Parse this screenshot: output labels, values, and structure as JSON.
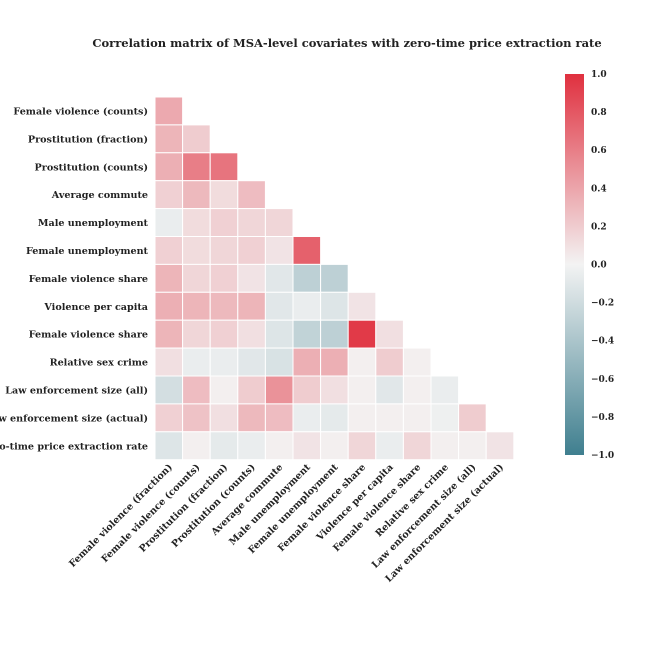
{
  "chart_data": {
    "type": "heatmap",
    "title": "Correlation matrix of MSA-level covariates with zero-time price extraction rate",
    "row_labels": [
      "Female violence (counts)",
      "Prostitution (fraction)",
      "Prostitution (counts)",
      "Average commute",
      "Male unemployment",
      "Female unemployment",
      "Female violence share",
      "Violence per capita",
      "Female violence share",
      "Relative sex crime",
      "Law enforcement size (all)",
      "Law enforcement size (actual)",
      "Zero-time price extraction rate"
    ],
    "column_labels": [
      "Female violence (fraction)",
      "Female violence (counts)",
      "Prostitution (fraction)",
      "Prostitution (counts)",
      "Average commute",
      "Male unemployment",
      "Female unemployment",
      "Female violence share",
      "Violence per capita",
      "Female violence share",
      "Relative sex crime",
      "Law enforcement size (all)",
      "Law enforcement size (actual)"
    ],
    "values": [
      [
        0.38
      ],
      [
        0.32,
        0.2
      ],
      [
        0.35,
        0.6,
        0.65
      ],
      [
        0.18,
        0.3,
        0.12,
        0.28
      ],
      [
        -0.05,
        0.12,
        0.18,
        0.15,
        0.15
      ],
      [
        0.18,
        0.12,
        0.15,
        0.18,
        0.08,
        0.75
      ],
      [
        0.32,
        0.15,
        0.18,
        0.08,
        -0.1,
        -0.3,
        -0.3
      ],
      [
        0.35,
        0.32,
        0.3,
        0.32,
        -0.1,
        -0.05,
        -0.12,
        0.08
      ],
      [
        0.32,
        0.15,
        0.18,
        0.1,
        -0.12,
        -0.28,
        -0.3,
        0.95,
        0.1
      ],
      [
        0.1,
        -0.05,
        -0.05,
        -0.1,
        -0.15,
        0.35,
        0.35,
        0.02,
        0.2,
        0.02
      ],
      [
        -0.18,
        0.28,
        0.02,
        0.2,
        0.5,
        0.2,
        0.1,
        0.02,
        -0.1,
        0.02,
        -0.05
      ],
      [
        0.18,
        0.25,
        0.1,
        0.3,
        0.28,
        -0.05,
        -0.08,
        0.02,
        0.02,
        0.02,
        -0.03,
        0.2
      ],
      [
        -0.12,
        0.02,
        -0.08,
        -0.05,
        0.02,
        0.08,
        0.02,
        0.15,
        -0.05,
        0.15,
        0.02,
        0.02,
        0.08
      ]
    ],
    "vmin": -1.0,
    "vmax": 1.0,
    "colormap": {
      "low": "#3f7f8f",
      "mid": "#f3f3f3",
      "high": "#e0303f"
    },
    "colorbar_ticks": [
      "1.0",
      "0.8",
      "0.6",
      "0.4",
      "0.2",
      "0.0",
      "−0.2",
      "−0.4",
      "−0.6",
      "−0.8",
      "−1.0"
    ],
    "colorbar_tick_values": [
      1.0,
      0.8,
      0.6,
      0.4,
      0.2,
      0.0,
      -0.2,
      -0.4,
      -0.6,
      -0.8,
      -1.0
    ],
    "mask": "upper-triangle",
    "grid": false
  }
}
